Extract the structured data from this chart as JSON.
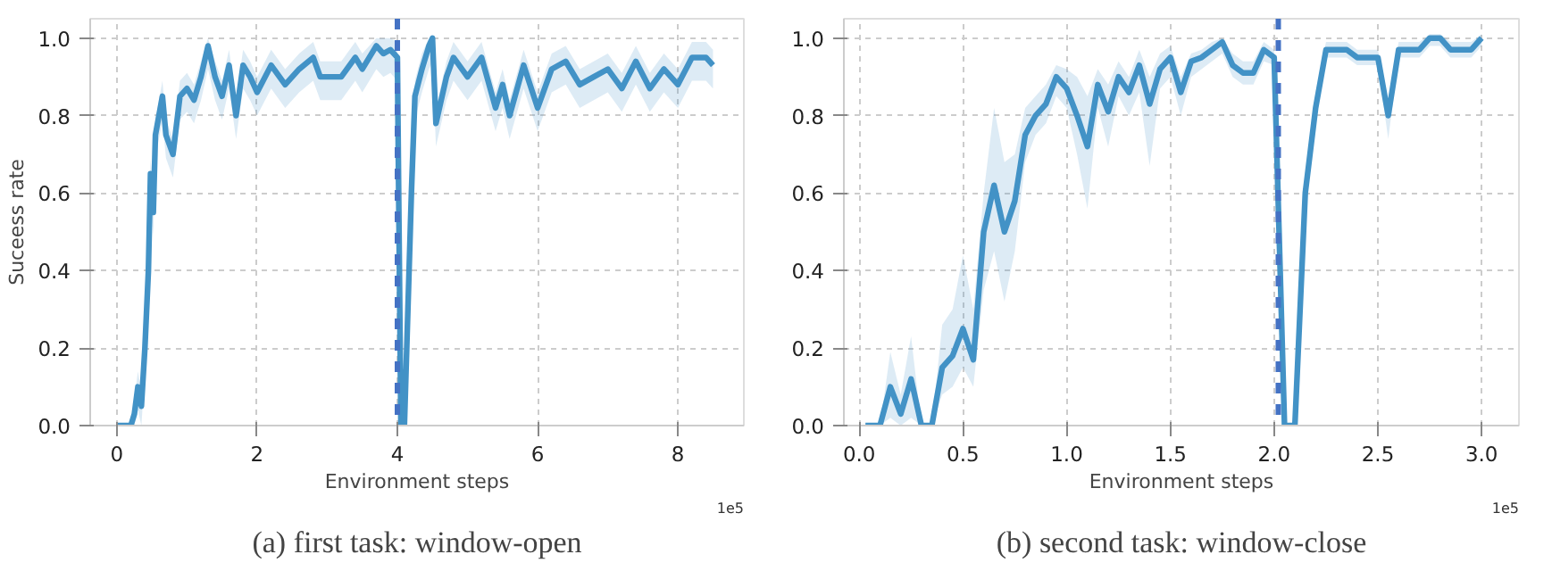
{
  "chart_data": [
    {
      "type": "line",
      "xlabel": "Environment steps",
      "ylabel": "Suceess rate",
      "xlim": [
        -0.38,
        8.94
      ],
      "xticks": [
        0,
        2,
        4,
        6,
        8
      ],
      "ylim": [
        0,
        1.05
      ],
      "yticks": [
        {
          "value": 0,
          "label": "0.0"
        },
        {
          "value": 0.2,
          "label": "0.2"
        },
        {
          "value": 0.4,
          "label": "0.4"
        },
        {
          "value": 0.6,
          "label": "0.6"
        },
        {
          "value": 0.8,
          "label": "0.8"
        },
        {
          "value": 1.0,
          "label": "1.0"
        }
      ],
      "grid": true,
      "line_style": "solid",
      "ref_lines": [
        {
          "axis": "x",
          "value": 4.0,
          "color": "#4472c4",
          "line_style": "dashed"
        }
      ],
      "annotations": [
        "1e5",
        "(a) first task: window-open"
      ],
      "series": [
        {
          "color": "#4292c6",
          "x": [
            0,
            0.2,
            0.25,
            0.3,
            0.35,
            0.4,
            0.45,
            0.48,
            0.52,
            0.55,
            0.6,
            0.65,
            0.7,
            0.8,
            0.9,
            1.0,
            1.1,
            1.2,
            1.3,
            1.4,
            1.5,
            1.6,
            1.7,
            1.8,
            1.9,
            2.0,
            2.2,
            2.4,
            2.6,
            2.8,
            2.9,
            3.0,
            3.2,
            3.4,
            3.5,
            3.7,
            3.8,
            3.9,
            4.0,
            4.05,
            4.1,
            4.2,
            4.25,
            4.35,
            4.45,
            4.5,
            4.55,
            4.7,
            4.8,
            5.0,
            5.2,
            5.4,
            5.5,
            5.6,
            5.8,
            6.0,
            6.2,
            6.4,
            6.6,
            6.8,
            7.0,
            7.2,
            7.4,
            7.6,
            7.8,
            8.0,
            8.2,
            8.4,
            8.5
          ],
          "values": [
            0,
            0,
            0.03,
            0.1,
            0.05,
            0.2,
            0.4,
            0.65,
            0.55,
            0.75,
            0.8,
            0.85,
            0.75,
            0.7,
            0.85,
            0.87,
            0.84,
            0.9,
            0.98,
            0.9,
            0.85,
            0.93,
            0.8,
            0.93,
            0.9,
            0.86,
            0.93,
            0.88,
            0.92,
            0.95,
            0.9,
            0.9,
            0.9,
            0.95,
            0.92,
            0.98,
            0.96,
            0.97,
            0.95,
            0,
            0,
            0.6,
            0.85,
            0.92,
            0.98,
            1.0,
            0.78,
            0.9,
            0.95,
            0.9,
            0.95,
            0.82,
            0.88,
            0.8,
            0.93,
            0.82,
            0.92,
            0.94,
            0.88,
            0.9,
            0.92,
            0.87,
            0.94,
            0.87,
            0.92,
            0.88,
            0.95,
            0.95,
            0.93
          ],
          "lower": [
            0,
            0,
            0,
            0.04,
            0,
            0.14,
            0.34,
            0.59,
            0.49,
            0.69,
            0.74,
            0.79,
            0.69,
            0.64,
            0.79,
            0.81,
            0.78,
            0.84,
            0.92,
            0.84,
            0.79,
            0.87,
            0.74,
            0.87,
            0.84,
            0.8,
            0.87,
            0.82,
            0.86,
            0.89,
            0.84,
            0.84,
            0.84,
            0.89,
            0.86,
            0.92,
            0.9,
            0.91,
            0.89,
            0,
            0,
            0.54,
            0.79,
            0.86,
            0.92,
            0.94,
            0.72,
            0.84,
            0.89,
            0.84,
            0.89,
            0.76,
            0.82,
            0.74,
            0.87,
            0.76,
            0.86,
            0.88,
            0.82,
            0.84,
            0.86,
            0.81,
            0.88,
            0.81,
            0.86,
            0.82,
            0.89,
            0.89,
            0.87
          ],
          "upper": [
            0,
            0,
            0.07,
            0.14,
            0.09,
            0.24,
            0.44,
            0.69,
            0.59,
            0.79,
            0.84,
            0.89,
            0.79,
            0.74,
            0.89,
            0.91,
            0.88,
            0.94,
            1.0,
            0.94,
            0.89,
            0.97,
            0.84,
            0.97,
            0.94,
            0.9,
            0.97,
            0.92,
            0.96,
            0.99,
            0.94,
            0.94,
            0.94,
            0.99,
            0.96,
            1.0,
            1.0,
            1.0,
            0.99,
            0,
            0,
            0.64,
            0.89,
            0.96,
            1.0,
            1.0,
            0.82,
            0.94,
            0.99,
            0.94,
            0.99,
            0.86,
            0.92,
            0.84,
            0.97,
            0.86,
            0.96,
            0.98,
            0.92,
            0.94,
            0.96,
            0.91,
            0.98,
            0.91,
            0.96,
            0.92,
            0.99,
            0.99,
            0.97
          ]
        }
      ]
    },
    {
      "type": "line",
      "xlabel": "Environment steps",
      "xlim": [
        -0.074,
        3.18
      ],
      "xticks": [
        {
          "value": 0,
          "label": "0.0"
        },
        0.5,
        {
          "value": 1,
          "label": "1.0"
        },
        1.5,
        {
          "value": 2,
          "label": "2.0"
        },
        2.5,
        {
          "value": 3,
          "label": "3.0"
        }
      ],
      "ylim": [
        0,
        1.05
      ],
      "yticks": [
        {
          "value": 0,
          "label": "0.0"
        },
        {
          "value": 0.2,
          "label": "0.2"
        },
        {
          "value": 0.4,
          "label": "0.4"
        },
        {
          "value": 0.6,
          "label": "0.6"
        },
        {
          "value": 0.8,
          "label": "0.8"
        },
        {
          "value": 1.0,
          "label": "1.0"
        }
      ],
      "grid": true,
      "line_style": "solid",
      "ref_lines": [
        {
          "axis": "x",
          "value": 2.02,
          "color": "#4472c4",
          "line_style": "dashed"
        }
      ],
      "annotations": [
        "1e5",
        "(b) second task: window-close"
      ],
      "series": [
        {
          "color": "#4292c6",
          "x": [
            0.03,
            0.1,
            0.15,
            0.2,
            0.25,
            0.3,
            0.35,
            0.4,
            0.45,
            0.5,
            0.55,
            0.6,
            0.65,
            0.7,
            0.75,
            0.8,
            0.85,
            0.9,
            0.95,
            1.0,
            1.05,
            1.1,
            1.15,
            1.2,
            1.25,
            1.3,
            1.35,
            1.4,
            1.45,
            1.5,
            1.55,
            1.6,
            1.65,
            1.7,
            1.75,
            1.8,
            1.85,
            1.9,
            1.95,
            2.0,
            2.05,
            2.1,
            2.15,
            2.2,
            2.25,
            2.3,
            2.35,
            2.4,
            2.45,
            2.5,
            2.55,
            2.6,
            2.65,
            2.7,
            2.75,
            2.8,
            2.85,
            2.9,
            2.95,
            3.0
          ],
          "values": [
            0,
            0,
            0.1,
            0.03,
            0.12,
            0,
            0,
            0.15,
            0.18,
            0.25,
            0.17,
            0.5,
            0.62,
            0.5,
            0.58,
            0.75,
            0.8,
            0.83,
            0.9,
            0.87,
            0.8,
            0.72,
            0.88,
            0.81,
            0.9,
            0.86,
            0.93,
            0.83,
            0.92,
            0.95,
            0.86,
            0.94,
            0.95,
            0.97,
            0.99,
            0.93,
            0.91,
            0.91,
            0.97,
            0.95,
            0,
            0,
            0.6,
            0.82,
            0.97,
            0.97,
            0.97,
            0.95,
            0.95,
            0.95,
            0.8,
            0.97,
            0.97,
            0.97,
            1.0,
            1.0,
            0.97,
            0.97,
            0.97,
            1.0
          ],
          "lower": [
            0,
            0,
            0.02,
            0,
            0.02,
            0,
            0,
            0.08,
            0.1,
            0.15,
            0.1,
            0.35,
            0.45,
            0.32,
            0.45,
            0.68,
            0.75,
            0.78,
            0.85,
            0.82,
            0.7,
            0.56,
            0.82,
            0.72,
            0.85,
            0.8,
            0.86,
            0.67,
            0.87,
            0.9,
            0.8,
            0.9,
            0.92,
            0.94,
            0.96,
            0.9,
            0.88,
            0.88,
            0.94,
            0.93,
            0,
            0,
            0.55,
            0.78,
            0.95,
            0.95,
            0.95,
            0.93,
            0.93,
            0.93,
            0.74,
            0.95,
            0.95,
            0.95,
            0.98,
            0.98,
            0.95,
            0.95,
            0.95,
            0.98
          ],
          "upper": [
            0,
            0,
            0.19,
            0.08,
            0.23,
            0,
            0,
            0.26,
            0.3,
            0.44,
            0.3,
            0.6,
            0.82,
            0.68,
            0.7,
            0.82,
            0.85,
            0.88,
            0.93,
            0.92,
            0.9,
            0.85,
            0.92,
            0.88,
            0.94,
            0.9,
            0.97,
            0.9,
            0.96,
            0.98,
            0.9,
            0.96,
            0.97,
            0.99,
            1.0,
            0.96,
            0.94,
            0.94,
            0.99,
            0.97,
            0,
            0,
            0.65,
            0.86,
            0.99,
            0.99,
            0.99,
            0.97,
            0.97,
            0.97,
            0.84,
            0.99,
            0.99,
            0.99,
            1.01,
            1.01,
            0.99,
            0.99,
            0.99,
            1.01
          ]
        }
      ]
    }
  ]
}
